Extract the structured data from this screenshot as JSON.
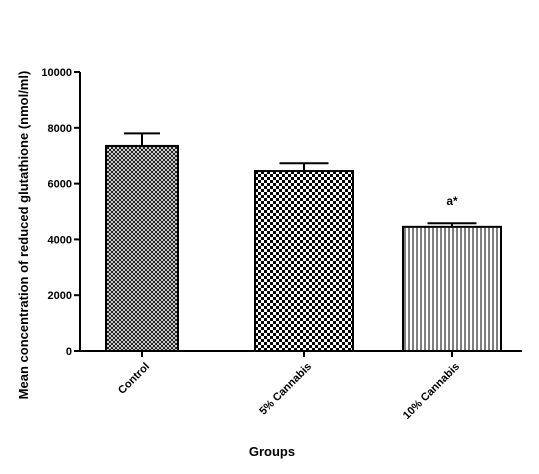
{
  "chart_data": {
    "type": "bar",
    "y_label": "Mean concentration of reduced glutathione  (nmol/ml)",
    "x_label": "Groups",
    "categories": [
      "Control",
      "5% Cannabis",
      "10% Cannabis"
    ],
    "values": [
      7350,
      6450,
      4450
    ],
    "errors": [
      450,
      280,
      130
    ],
    "annotations": [
      null,
      null,
      "a*"
    ],
    "ylim": [
      0,
      10000
    ],
    "yticks": [
      0,
      2000,
      4000,
      6000,
      8000,
      10000
    ],
    "color": "#000000"
  }
}
